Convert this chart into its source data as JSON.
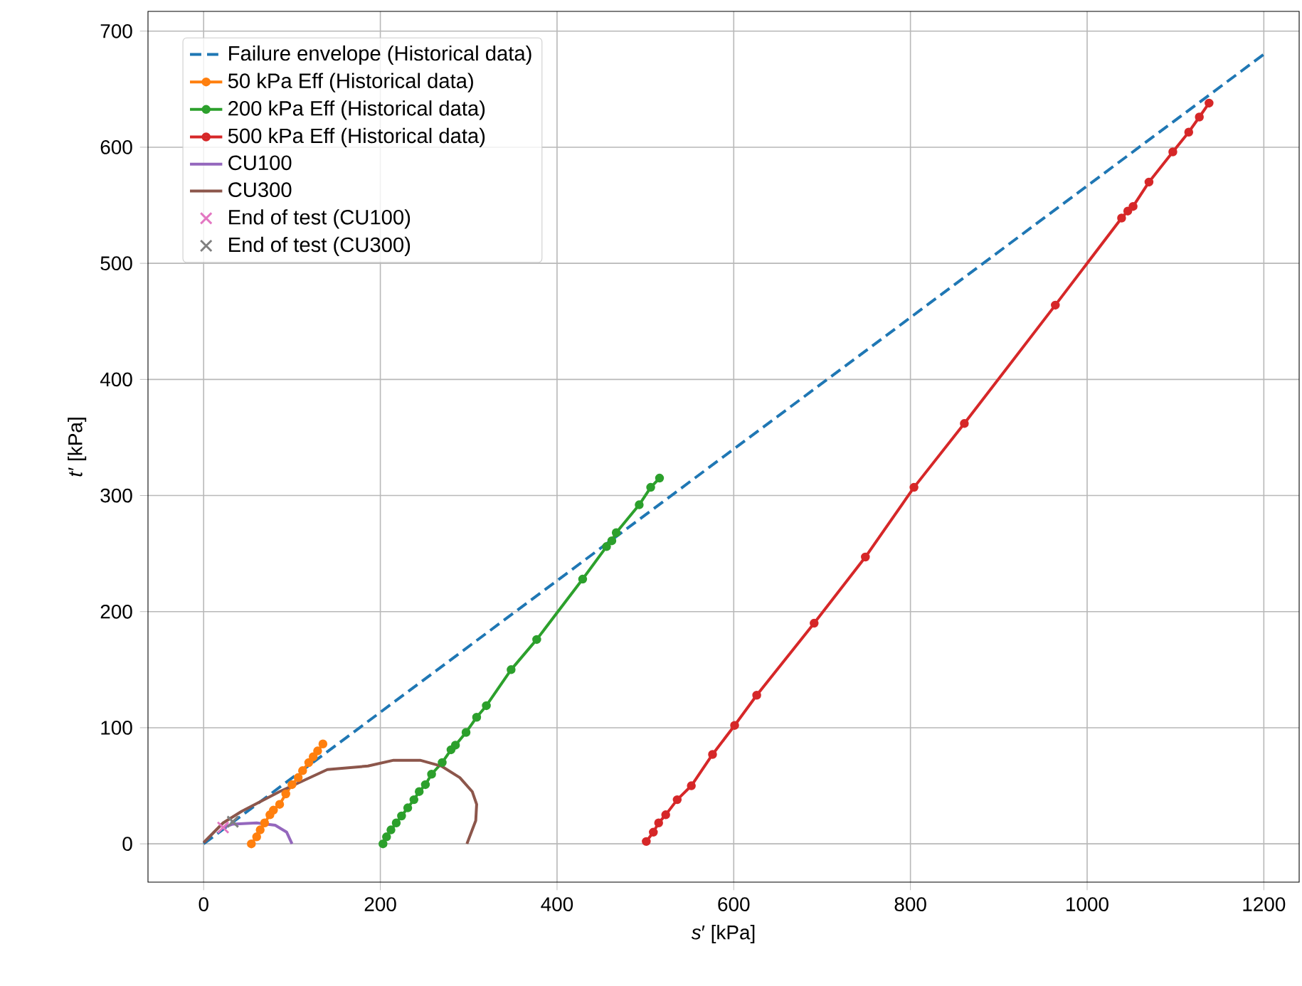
{
  "chart_data": {
    "type": "line",
    "xlabel": "*s*′ [kPa]",
    "ylabel": "*t*′ [kPa]",
    "xlim": [
      -63,
      1240
    ],
    "ylim": [
      -33,
      717
    ],
    "xticks": [
      0,
      200,
      400,
      600,
      800,
      1000,
      1200
    ],
    "yticks": [
      0,
      100,
      200,
      300,
      400,
      500,
      600,
      700
    ],
    "grid": true,
    "legend": "top left",
    "series": [
      {
        "name": "Failure envelope (Historical data)",
        "color": "#1f77b4",
        "line_style": "dashed",
        "marker": "none",
        "x": [
          0,
          1200
        ],
        "values": [
          0,
          680
        ]
      },
      {
        "name": "50 kPa Eff (Historical data)",
        "color": "#ff7f0e",
        "line_style": "solid",
        "marker": "circle",
        "x": [
          54,
          60,
          64,
          69,
          75,
          79,
          86,
          93,
          100,
          107,
          112,
          119,
          124,
          129,
          135
        ],
        "values": [
          0,
          6,
          12,
          18,
          25,
          29,
          34,
          43,
          51,
          57,
          63,
          70,
          75,
          80,
          86
        ]
      },
      {
        "name": "200 kPa Eff (Historical data)",
        "color": "#2ca02c",
        "line_style": "solid",
        "marker": "circle",
        "x": [
          203,
          207,
          212,
          218,
          224,
          231,
          238,
          244,
          251,
          258,
          270,
          280,
          285,
          297,
          309,
          320,
          348,
          377,
          429,
          456,
          462,
          467,
          493,
          506,
          516
        ],
        "values": [
          0,
          6,
          12,
          18,
          24,
          31,
          38,
          45,
          51,
          60,
          70,
          81,
          85,
          96,
          109,
          119,
          150,
          176,
          228,
          256,
          261,
          268,
          292,
          307,
          315
        ]
      },
      {
        "name": "500 kPa Eff (Historical data)",
        "color": "#d62728",
        "line_style": "solid",
        "marker": "circle",
        "x": [
          501,
          509,
          515,
          523,
          536,
          552,
          576,
          601,
          626,
          691,
          749,
          804,
          861,
          964,
          1039,
          1046,
          1052,
          1070,
          1097,
          1115,
          1127,
          1138
        ],
        "values": [
          2,
          10,
          18,
          25,
          38,
          50,
          77,
          102,
          128,
          190,
          247,
          307,
          362,
          464,
          539,
          545,
          549,
          570,
          596,
          613,
          626,
          638
        ]
      },
      {
        "name": "CU100",
        "color": "#9467bd",
        "line_style": "solid",
        "marker": "none",
        "x": [
          100,
          94,
          81,
          60,
          33,
          22
        ],
        "values": [
          0,
          10,
          16,
          18,
          17,
          14
        ]
      },
      {
        "name": "CU300",
        "color": "#8c564b",
        "line_style": "solid",
        "marker": "none",
        "x": [
          298,
          304,
          308,
          309,
          304,
          290,
          269,
          245,
          215,
          186,
          140,
          86,
          43,
          22,
          0
        ],
        "values": [
          0,
          12,
          20,
          34,
          45,
          57,
          67,
          72,
          72,
          67,
          64,
          45,
          28,
          18,
          1
        ]
      },
      {
        "name": "End of test (CU100)",
        "type": "scatter",
        "color": "#e377c2",
        "marker": "cross",
        "x": [
          22
        ],
        "values": [
          14
        ]
      },
      {
        "name": "End of test (CU300)",
        "type": "scatter",
        "color": "#7f7f7f",
        "marker": "cross",
        "x": [
          33
        ],
        "values": [
          19
        ]
      }
    ]
  }
}
